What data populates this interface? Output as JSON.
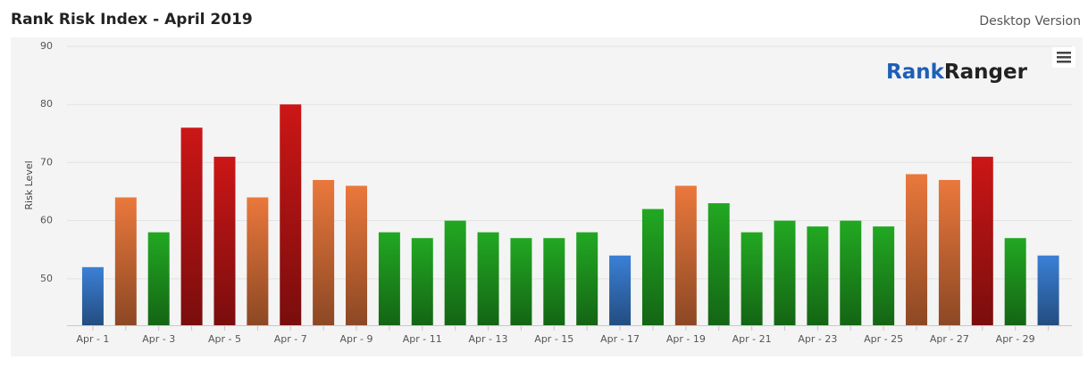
{
  "header": {
    "title": "Rank Risk Index - April 2019",
    "version_link": "Desktop Version"
  },
  "logo": {
    "part1": "Rank",
    "part2": "Ranger"
  },
  "chart_data": {
    "type": "bar",
    "y_label": "Risk Level",
    "categories": [
      "Apr - 1",
      null,
      "Apr - 3",
      null,
      "Apr - 5",
      null,
      "Apr - 7",
      null,
      "Apr - 9",
      null,
      "Apr - 11",
      null,
      "Apr - 13",
      null,
      "Apr - 15",
      null,
      "Apr - 17",
      null,
      "Apr - 19",
      null,
      "Apr - 21",
      null,
      "Apr - 23",
      null,
      "Apr - 25",
      null,
      "Apr - 27",
      null,
      "Apr - 29",
      null
    ],
    "values": [
      52,
      64,
      58,
      76,
      71,
      64,
      80,
      67,
      66,
      58,
      57,
      60,
      58,
      57,
      57,
      58,
      54,
      62,
      66,
      63,
      58,
      60,
      59,
      60,
      59,
      68,
      67,
      71,
      57,
      54
    ],
    "colors": [
      "#3b80d6",
      "#ea783c",
      "#22a822",
      "#cc1616",
      "#cc1616",
      "#ea783c",
      "#cc1616",
      "#ea783c",
      "#ea783c",
      "#22a822",
      "#22a822",
      "#22a822",
      "#22a822",
      "#22a822",
      "#22a822",
      "#22a822",
      "#3b80d6",
      "#22a822",
      "#ea783c",
      "#22a822",
      "#22a822",
      "#22a822",
      "#22a822",
      "#22a822",
      "#22a822",
      "#ea783c",
      "#ea783c",
      "#cc1616",
      "#22a822",
      "#3b80d6"
    ],
    "ylim": [
      42,
      90
    ],
    "yticks": [
      50,
      60,
      70,
      80,
      90
    ],
    "grid": true
  }
}
